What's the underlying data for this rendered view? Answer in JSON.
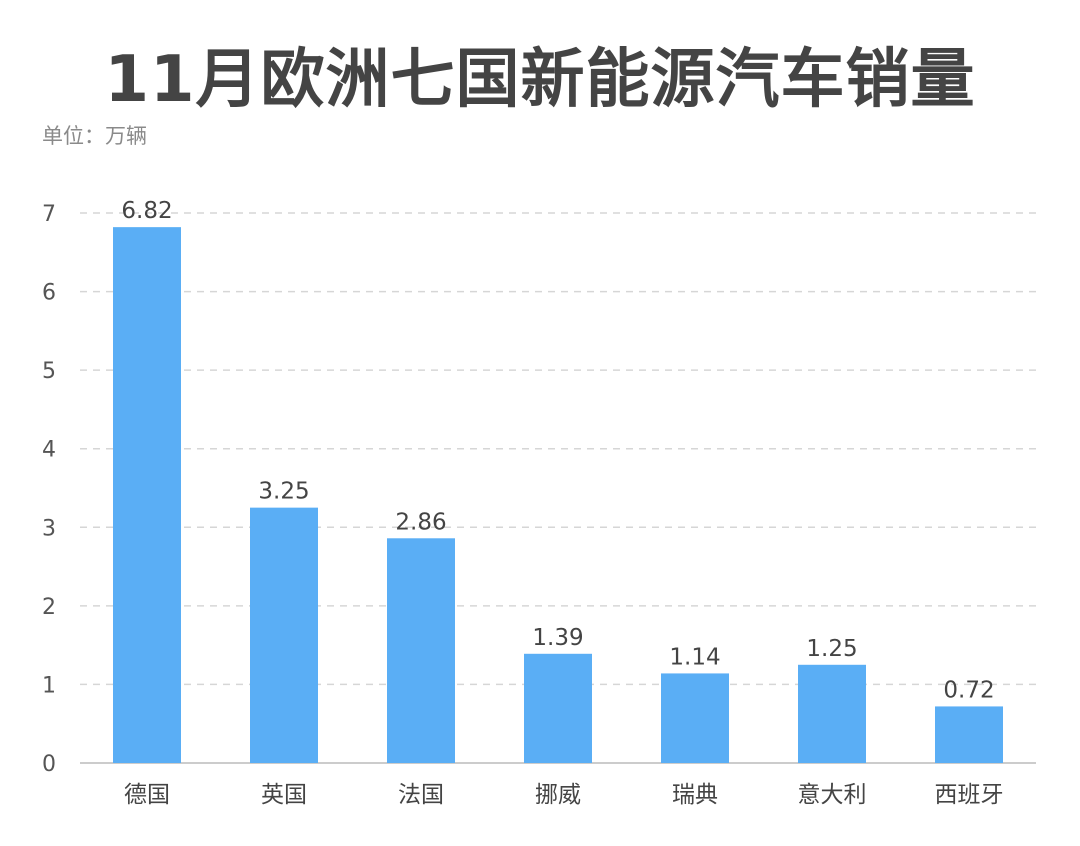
{
  "chart_data": {
    "type": "bar",
    "title": "11月欧洲七国新能源汽车销量",
    "unit_label": "单位：万辆",
    "categories": [
      "德国",
      "英国",
      "法国",
      "挪威",
      "瑞典",
      "意大利",
      "西班牙"
    ],
    "values": [
      6.82,
      3.25,
      2.86,
      1.39,
      1.14,
      1.25,
      0.72
    ],
    "value_labels": [
      "6.82",
      "3.25",
      "2.86",
      "1.39",
      "1.14",
      "1.25",
      "0.72"
    ],
    "ylim": [
      0,
      7
    ],
    "yticks": [
      0,
      1,
      2,
      3,
      4,
      5,
      6,
      7
    ],
    "grid": true,
    "colors": {
      "bar": "#5aaef5",
      "grid": "#d6d6d6",
      "axis": "#bbbbbb"
    }
  }
}
